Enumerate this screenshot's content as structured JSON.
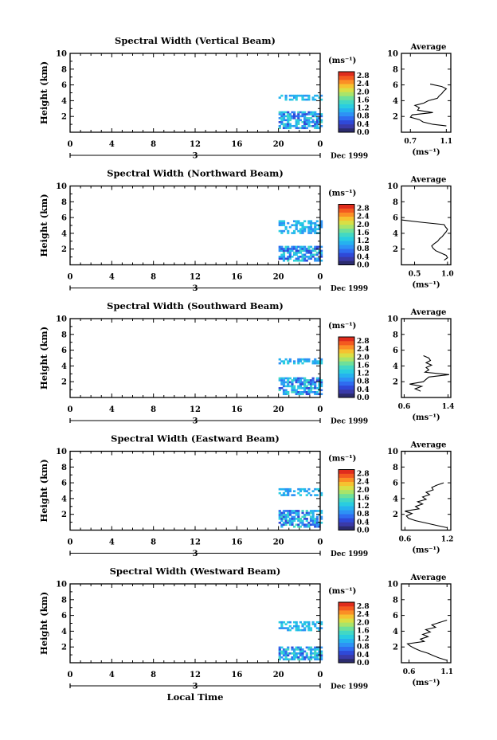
{
  "colors": {
    "colormap": [
      "#2b2b6e",
      "#3a3aa8",
      "#2f49d8",
      "#2f6cf0",
      "#2d92f5",
      "#25b2ef",
      "#29cde0",
      "#42d8c4",
      "#6ee09a",
      "#a9e46a",
      "#d9df45",
      "#f6c230",
      "#fb8f25",
      "#f45a1f",
      "#e02c1c"
    ],
    "background": "#ffffff",
    "ink": "#000000"
  },
  "chart_data": [
    {
      "type": "heatmap",
      "title": "Spectral Width (Vertical Beam)",
      "ylabel": "Height (km)",
      "yticks": [
        "2",
        "4",
        "6",
        "8",
        "10"
      ],
      "ylim": [
        0,
        10
      ],
      "xticks": [
        "0",
        "4",
        "8",
        "12",
        "16",
        "20",
        "0"
      ],
      "xlim": [
        0,
        24
      ],
      "date_label": "Dec 1999",
      "date_day": "3",
      "colorbar_unit": "(ms⁻¹)",
      "colorbar_ticks": [
        "0.0",
        "0.4",
        "0.8",
        "1.2",
        "1.6",
        "2.0",
        "2.4",
        "2.8"
      ],
      "colorbar_range": [
        0,
        3.0
      ],
      "data_region": {
        "x": [
          20,
          24
        ],
        "layers": [
          [
            4.0,
            4.6
          ],
          [
            0.4,
            2.6
          ]
        ]
      },
      "average": {
        "title": "Average",
        "xlabel": "(ms⁻¹)",
        "xticks": [
          "0.7",
          "1.1"
        ],
        "xlim": [
          0.6,
          1.15
        ],
        "ylim": [
          0,
          10
        ],
        "yticks": [
          "2",
          "4",
          "6",
          "8",
          "10"
        ],
        "profile_height_km": [
          0.8,
          1.0,
          1.3,
          1.6,
          1.9,
          2.2,
          2.5,
          2.8,
          3.1,
          3.4,
          3.7,
          4.0,
          4.3,
          4.6,
          4.9,
          5.2,
          5.5,
          5.8,
          6.1
        ],
        "profile_value": [
          1.1,
          0.95,
          0.84,
          0.8,
          0.7,
          0.72,
          0.95,
          0.78,
          0.8,
          0.75,
          0.85,
          0.9,
          1.0,
          1.02,
          1.05,
          1.07,
          1.1,
          1.05,
          0.92
        ]
      }
    },
    {
      "type": "heatmap",
      "title": "Spectral Width (Northward Beam)",
      "ylabel": "Height (km)",
      "yticks": [
        "2",
        "4",
        "6",
        "8",
        "10"
      ],
      "ylim": [
        0,
        10
      ],
      "xticks": [
        "0",
        "4",
        "8",
        "12",
        "16",
        "20",
        "0"
      ],
      "xlim": [
        0,
        24
      ],
      "date_label": "Dec 1999",
      "date_day": "3",
      "colorbar_unit": "(ms⁻¹)",
      "colorbar_ticks": [
        "0.0",
        "0.4",
        "0.8",
        "1.2",
        "1.6",
        "2.0",
        "2.4",
        "2.8"
      ],
      "colorbar_range": [
        0,
        3.0
      ],
      "data_region": {
        "x": [
          20,
          24
        ],
        "layers": [
          [
            3.9,
            5.6
          ],
          [
            0.4,
            2.4
          ]
        ]
      },
      "average": {
        "title": "Average",
        "xlabel": "(ms⁻¹)",
        "xticks": [
          "0.5",
          "1.0"
        ],
        "xlim": [
          0.3,
          1.05
        ],
        "ylim": [
          0,
          10
        ],
        "yticks": [
          "2",
          "4",
          "6",
          "8",
          "10"
        ],
        "profile_height_km": [
          0.6,
          0.9,
          1.2,
          1.5,
          1.8,
          2.1,
          2.4,
          2.7,
          3.0,
          3.3,
          3.6,
          3.9,
          4.2,
          4.5,
          4.8,
          5.1,
          5.4,
          5.7
        ],
        "profile_value": [
          0.95,
          1.0,
          0.98,
          0.9,
          0.82,
          0.78,
          0.76,
          0.8,
          0.85,
          0.88,
          0.92,
          0.95,
          0.98,
          1.0,
          0.97,
          0.95,
          0.6,
          0.3
        ]
      }
    },
    {
      "type": "heatmap",
      "title": "Spectral Width (Southward Beam)",
      "ylabel": "Height (km)",
      "yticks": [
        "2",
        "4",
        "6",
        "8",
        "10"
      ],
      "ylim": [
        0,
        10
      ],
      "xticks": [
        "0",
        "4",
        "8",
        "12",
        "16",
        "20",
        "0"
      ],
      "xlim": [
        0,
        24
      ],
      "date_label": "Dec 1999",
      "date_day": "3",
      "colorbar_unit": "(ms⁻¹)",
      "colorbar_ticks": [
        "0.0",
        "0.4",
        "0.8",
        "1.2",
        "1.6",
        "2.0",
        "2.4",
        "2.8"
      ],
      "colorbar_range": [
        0,
        3.0
      ],
      "data_region": {
        "x": [
          20,
          24
        ],
        "layers": [
          [
            4.2,
            4.8
          ],
          [
            0.3,
            2.4
          ]
        ]
      },
      "average": {
        "title": "Average",
        "xlabel": "(ms⁻¹)",
        "xticks": [
          "0.6",
          "1.4"
        ],
        "xlim": [
          0.55,
          1.45
        ],
        "ylim": [
          0,
          10
        ],
        "yticks": [
          "2",
          "4",
          "6",
          "8",
          "10"
        ],
        "profile_height_km": [
          0.8,
          1.1,
          1.4,
          1.7,
          2.0,
          2.3,
          2.6,
          2.9,
          3.2,
          3.5,
          3.8,
          4.1,
          4.4,
          4.7,
          5.0,
          5.3
        ],
        "profile_value": [
          0.9,
          0.8,
          0.92,
          0.7,
          0.95,
          1.0,
          1.05,
          1.42,
          0.98,
          1.05,
          1.0,
          1.1,
          1.0,
          1.08,
          1.05,
          0.95
        ]
      }
    },
    {
      "type": "heatmap",
      "title": "Spectral Width (Eastward Beam)",
      "ylabel": "Height (km)",
      "yticks": [
        "2",
        "4",
        "6",
        "8",
        "10"
      ],
      "ylim": [
        0,
        10
      ],
      "xticks": [
        "0",
        "4",
        "8",
        "12",
        "16",
        "20",
        "0"
      ],
      "xlim": [
        0,
        24
      ],
      "date_label": "Dec 1999",
      "date_day": "3",
      "colorbar_unit": "(ms⁻¹)",
      "colorbar_ticks": [
        "0.0",
        "0.4",
        "0.8",
        "1.2",
        "1.6",
        "2.0",
        "2.4",
        "2.8"
      ],
      "colorbar_range": [
        0,
        3.0
      ],
      "data_region": {
        "x": [
          20,
          24
        ],
        "layers": [
          [
            4.3,
            5.3
          ],
          [
            0.3,
            2.5
          ]
        ]
      },
      "average": {
        "title": "Average",
        "xlabel": "(ms⁻¹)",
        "xticks": [
          "0.6",
          "1.2"
        ],
        "xlim": [
          0.55,
          1.25
        ],
        "ylim": [
          0,
          10
        ],
        "yticks": [
          "2",
          "4",
          "6",
          "8",
          "10"
        ],
        "profile_height_km": [
          0.3,
          0.6,
          0.9,
          1.2,
          1.5,
          1.8,
          2.1,
          2.4,
          2.7,
          3.0,
          3.3,
          3.6,
          3.9,
          4.2,
          4.5,
          4.8,
          5.1,
          5.4,
          5.7,
          6.0
        ],
        "profile_value": [
          1.2,
          1.05,
          0.9,
          0.75,
          0.65,
          0.62,
          0.7,
          0.6,
          0.8,
          0.75,
          0.85,
          0.78,
          0.9,
          0.85,
          0.95,
          0.9,
          1.0,
          0.98,
          1.05,
          1.15
        ]
      }
    },
    {
      "type": "heatmap",
      "title": "Spectral Width (Westward Beam)",
      "ylabel": "Height (km)",
      "yticks": [
        "2",
        "4",
        "6",
        "8",
        "10"
      ],
      "ylim": [
        0,
        10
      ],
      "xticks": [
        "0",
        "4",
        "8",
        "12",
        "16",
        "20",
        "0"
      ],
      "xlim": [
        0,
        24
      ],
      "date_label": "Dec 1999",
      "date_day": "3",
      "colorbar_unit": "(ms⁻¹)",
      "colorbar_ticks": [
        "0.0",
        "0.4",
        "0.8",
        "1.2",
        "1.6",
        "2.0",
        "2.4",
        "2.8"
      ],
      "colorbar_range": [
        0,
        3.0
      ],
      "data_region": {
        "x": [
          20,
          24
        ],
        "layers": [
          [
            4.0,
            5.2
          ],
          [
            0.3,
            2.0
          ]
        ]
      },
      "average": {
        "title": "Average",
        "xlabel": "(ms⁻¹)",
        "xticks": [
          "0.6",
          "1.1"
        ],
        "xlim": [
          0.5,
          1.15
        ],
        "ylim": [
          0,
          10
        ],
        "yticks": [
          "2",
          "4",
          "6",
          "8",
          "10"
        ],
        "profile_height_km": [
          0.3,
          0.6,
          0.9,
          1.2,
          1.5,
          1.8,
          2.1,
          2.4,
          2.7,
          3.0,
          3.3,
          3.6,
          3.9,
          4.2,
          4.5,
          4.8,
          5.1,
          5.4
        ],
        "profile_value": [
          1.1,
          1.0,
          0.92,
          0.85,
          0.75,
          0.68,
          0.62,
          0.58,
          0.8,
          0.75,
          0.85,
          0.78,
          0.88,
          0.82,
          0.95,
          0.9,
          1.0,
          1.1
        ]
      }
    }
  ],
  "x_axis_title": "Local Time"
}
